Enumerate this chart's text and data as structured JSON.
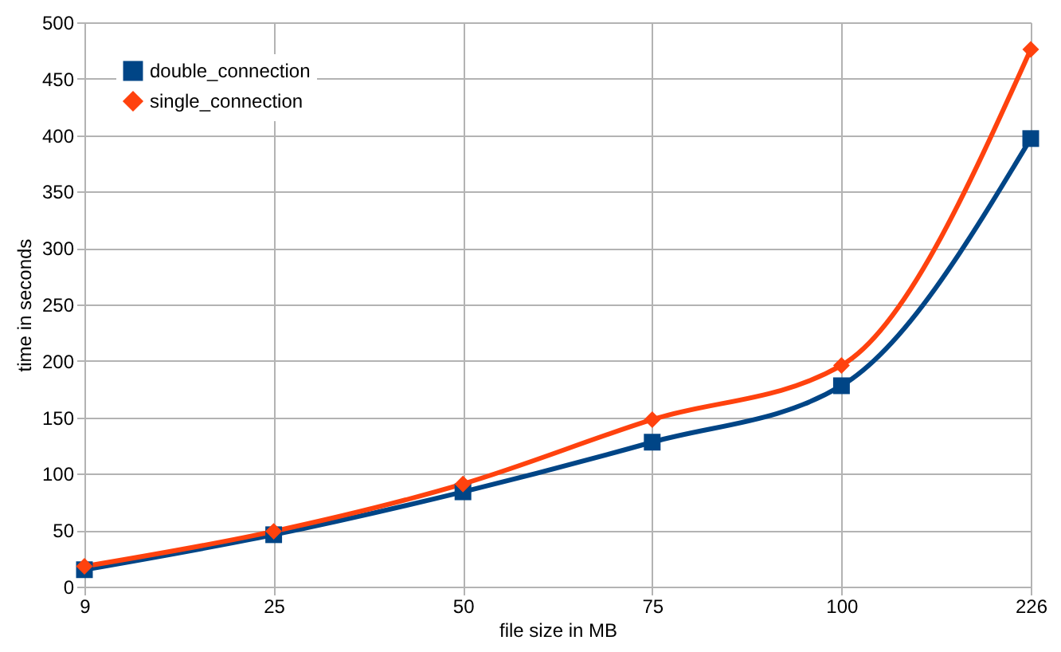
{
  "chart_data": {
    "type": "line",
    "xlabel": "file size in MB",
    "ylabel": "time in seconds",
    "categories": [
      "9",
      "25",
      "50",
      "75",
      "100",
      "226"
    ],
    "series": [
      {
        "name": "double_connection",
        "color": "#004586",
        "marker": "square",
        "values": [
          15,
          46,
          84,
          128,
          178,
          397
        ]
      },
      {
        "name": "single_connection",
        "color": "#ff420e",
        "marker": "diamond",
        "values": [
          18,
          49,
          91,
          148,
          196,
          476
        ]
      }
    ],
    "ylim": [
      0,
      500
    ],
    "yticks": [
      0,
      50,
      100,
      150,
      200,
      250,
      300,
      350,
      400,
      450,
      500
    ],
    "grid": true,
    "legend": "top left",
    "line_style": "solid"
  }
}
